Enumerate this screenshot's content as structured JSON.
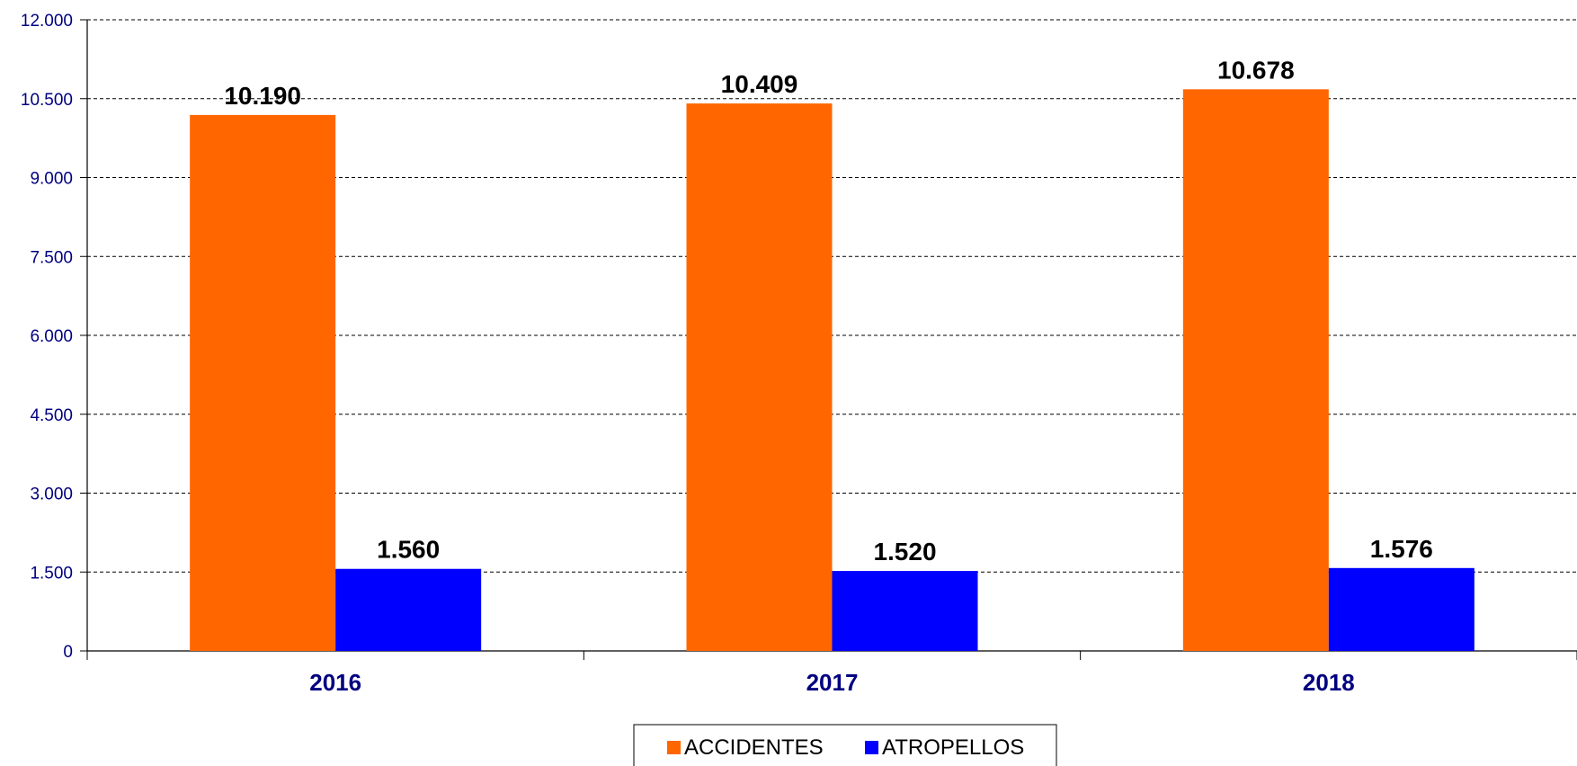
{
  "chart_data": {
    "type": "bar",
    "categories": [
      "2016",
      "2017",
      "2018"
    ],
    "series": [
      {
        "name": "ACCIDENTES",
        "values": [
          10190,
          10409,
          10678
        ],
        "labels": [
          "10.190",
          "10.409",
          "10.678"
        ],
        "color": "#FF6600"
      },
      {
        "name": "ATROPELLOS",
        "values": [
          1560,
          1520,
          1576
        ],
        "labels": [
          "1.560",
          "1.520",
          "1.576"
        ],
        "color": "#0000FF"
      }
    ],
    "yticks": [
      0,
      1500,
      3000,
      4500,
      6000,
      7500,
      9000,
      10500,
      12000
    ],
    "ytick_labels": [
      "0",
      "1.500",
      "3.000",
      "4.500",
      "6.000",
      "7.500",
      "9.000",
      "10.500",
      "12.000"
    ],
    "ylim": [
      0,
      12000
    ],
    "title": "",
    "xlabel": "",
    "ylabel": "",
    "grid": "horizontal-dashed",
    "legend_position": "bottom",
    "colors": {
      "axis_text": "#000080",
      "gridline": "#000000"
    }
  }
}
